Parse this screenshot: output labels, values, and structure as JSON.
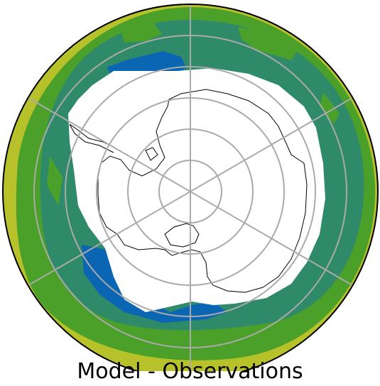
{
  "figure": {
    "caption": "Model - Observations",
    "projection": "south-polar-stereographic",
    "gridlines": true
  },
  "colors": {
    "outer_band": "#b7c12a",
    "mid_green": "#4aa028",
    "teal": "#2f8a6a",
    "blue": "#0a66b2",
    "bright_blue": "#1f4fff",
    "land_mask": "#ffffff",
    "coast": "#000000",
    "grid": "#aaaaaa"
  }
}
